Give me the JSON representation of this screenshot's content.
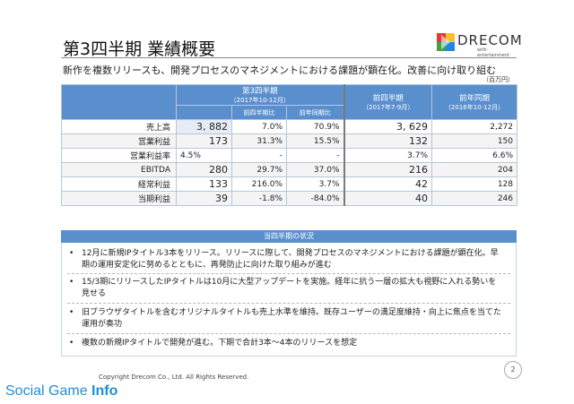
{
  "header": {
    "title": "第3四半期 業績概要",
    "subtitle": "新作を複数リリースも、開発プロセスのマネジメントにおける課題が顕在化。改善に向け取り組む",
    "unit": "（百万円）"
  },
  "logo": {
    "word": "DRECOM",
    "tagline": "with entertainment"
  },
  "table": {
    "col_q3": "第3四半期",
    "col_q3_period": "（2017年10-12月）",
    "col_qoq": "前四半期比",
    "col_yoy": "前年同期比",
    "col_prev_q": "前四半期",
    "col_prev_q_period": "（2017年7-9月）",
    "col_prev_y": "前年同期",
    "col_prev_y_period": "（2016年10-12月）",
    "rows": [
      {
        "label": "売上高",
        "q3": "3, 882",
        "qoq": "7.0%",
        "yoy": "70.9%",
        "prev_q": "3, 629",
        "prev_y": "2,272"
      },
      {
        "label": "営業利益",
        "q3": "173",
        "qoq": "31.3%",
        "yoy": "15.5%",
        "prev_q": "132",
        "prev_y": "150"
      },
      {
        "label": "営業利益率",
        "q3": "4.5%",
        "qoq": "-",
        "yoy": "-",
        "prev_q": "3.7%",
        "prev_y": "6.6%"
      },
      {
        "label": "EBITDA",
        "q3": "280",
        "qoq": "29.7%",
        "yoy": "37.0%",
        "prev_q": "216",
        "prev_y": "204"
      },
      {
        "label": "経常利益",
        "q3": "133",
        "qoq": "216.0%",
        "yoy": "3.7%",
        "prev_q": "42",
        "prev_y": "128"
      },
      {
        "label": "当期利益",
        "q3": "39",
        "qoq": "-1.8%",
        "yoy": "-84.0%",
        "prev_q": "40",
        "prev_y": "246"
      }
    ]
  },
  "status": {
    "heading": "当四半期の状況",
    "bullet_symbol": "•",
    "items": [
      "12月に新規IPタイトル3本をリリース。リリースに際して、開発プロセスのマネジメントにおける課題が顕在化。早期の運用安定化に努めるとともに、再発防止に向けた取り組みが進む",
      "15/3期にリリースしたIPタイトルは10月に大型アップデートを実施。経年に抗う一層の拡大も視野に入れる勢いを見せる",
      "旧ブラウザタイトルを含むオリジナルタイトルも売上水準を維持。既存ユーザーの満足度維持・向上に焦点を当てた運用が奏功",
      "複数の新規IPタイトルで開発が進む。下期で合計3本～4本のリリースを想定"
    ]
  },
  "footer": {
    "copyright": "Copyright Drecom Co., Ltd. All Rights Reserved.",
    "page": "2",
    "watermark_a": "Social Game ",
    "watermark_b": "Info"
  },
  "colors": {
    "accent": "#5a8fce",
    "watermark": "#1e8fd6"
  }
}
